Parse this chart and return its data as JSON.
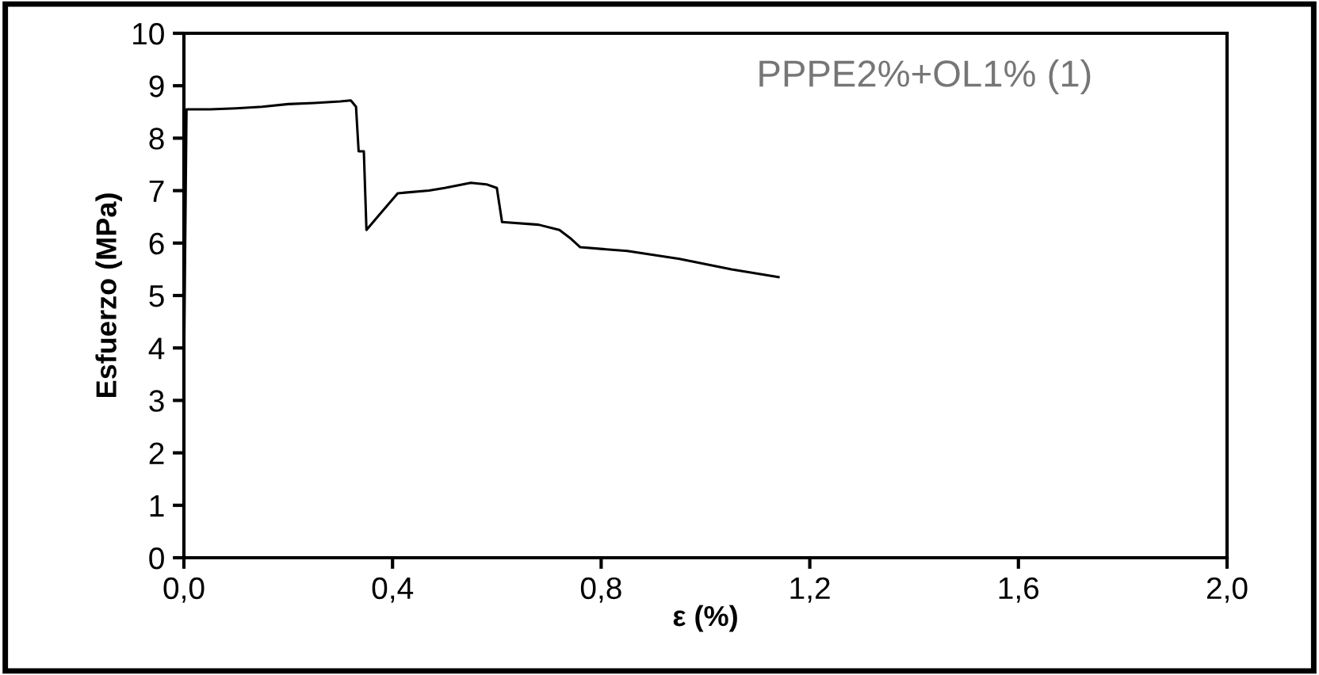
{
  "chart_data": {
    "type": "line",
    "xlabel": "ε (%)",
    "ylabel": "Esfuerzo (MPa)",
    "annotations": [
      "PPPE2%+OL1% (1)"
    ],
    "series": [
      {
        "color": "#000000",
        "x": [
          0,
          0.005,
          0.05,
          0.1,
          0.15,
          0.2,
          0.25,
          0.3,
          0.32,
          0.33,
          0.335,
          0.345,
          0.35,
          0.38,
          0.41,
          0.47,
          0.5,
          0.55,
          0.58,
          0.6,
          0.61,
          0.68,
          0.72,
          0.74,
          0.76,
          0.85,
          0.95,
          1.05,
          1.14
        ],
        "values": [
          3.5,
          8.55,
          8.55,
          8.57,
          8.6,
          8.65,
          8.67,
          8.7,
          8.72,
          8.6,
          7.75,
          7.75,
          6.25,
          6.6,
          6.95,
          7.0,
          7.05,
          7.15,
          7.12,
          7.05,
          6.4,
          6.35,
          6.25,
          6.1,
          5.92,
          5.85,
          5.7,
          5.5,
          5.35
        ]
      }
    ],
    "xlim": [
      0,
      2
    ],
    "xticks": [
      {
        "value": 0,
        "label": "0,0"
      },
      {
        "value": 0.4,
        "label": "0,4"
      },
      {
        "value": 0.8,
        "label": "0,8"
      },
      {
        "value": 1.2,
        "label": "1,2"
      },
      {
        "value": 1.6,
        "label": "1,6"
      },
      {
        "value": 2,
        "label": "2,0"
      }
    ],
    "ylim": [
      0,
      10
    ],
    "yticks": [
      0,
      1,
      2,
      3,
      4,
      5,
      6,
      7,
      8,
      9,
      10
    ],
    "grid": false,
    "legend": false,
    "marker": "none",
    "line_style": "solid"
  }
}
